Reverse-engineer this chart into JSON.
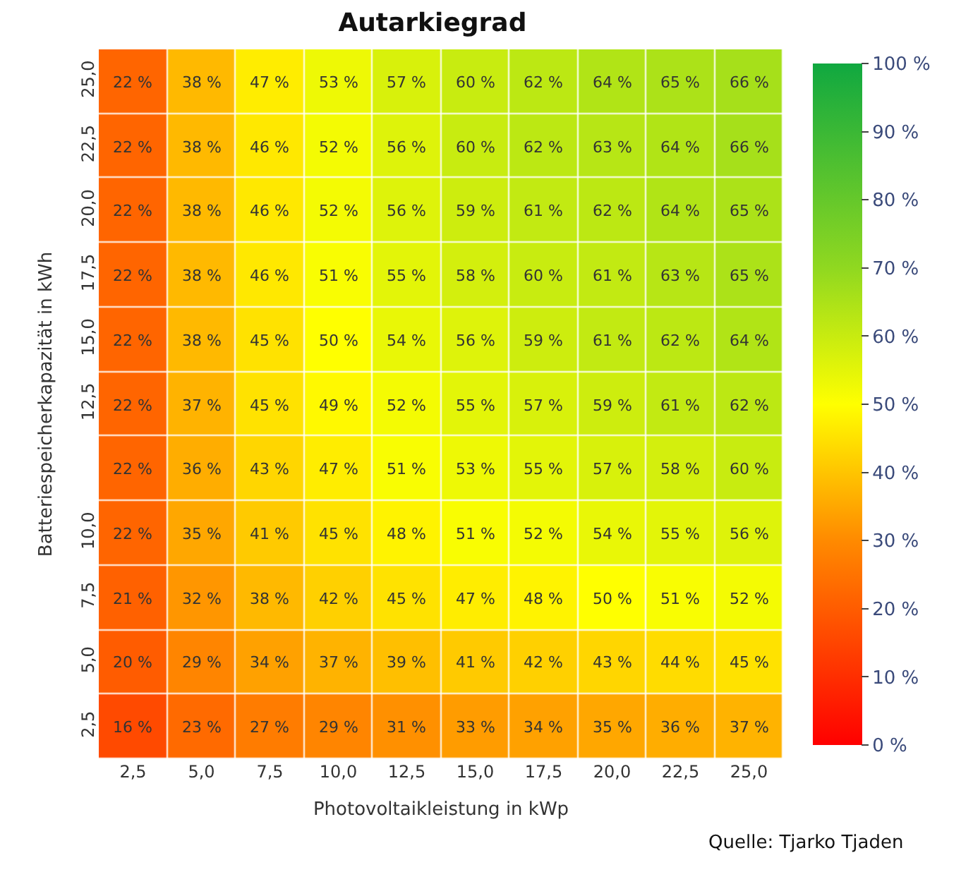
{
  "chart_data": {
    "type": "heatmap",
    "title": "Autarkiegrad",
    "xlabel": "Photovoltaikleistung in kWp",
    "ylabel": "Batteriespeicherkapazität in kWh",
    "x": [
      2.5,
      5.0,
      7.5,
      10.0,
      12.5,
      15.0,
      17.5,
      20.0,
      22.5,
      25.0
    ],
    "y_categories": [
      "25,0",
      "22,5",
      "20,0",
      "17,5",
      "15,0",
      "12,5",
      null,
      "10,0",
      "7,5",
      "5,0",
      "2,5"
    ],
    "xlim": [
      1.25,
      26.25
    ],
    "xticks": [
      {
        "value": 2.5,
        "label": "2,5"
      },
      {
        "value": 5.0,
        "label": "5,0"
      },
      {
        "value": 7.5,
        "label": "7,5"
      },
      {
        "value": 10.0,
        "label": "10,0"
      },
      {
        "value": 12.5,
        "label": "12,5"
      },
      {
        "value": 15.0,
        "label": "15,0"
      },
      {
        "value": 17.5,
        "label": "17,5"
      },
      {
        "value": 20.0,
        "label": "20,0"
      },
      {
        "value": 22.5,
        "label": "22,5"
      },
      {
        "value": 25.0,
        "label": "25,0"
      }
    ],
    "cells": [
      [
        22,
        38,
        47,
        53,
        57,
        60,
        62,
        64,
        65,
        66
      ],
      [
        22,
        38,
        46,
        52,
        56,
        60,
        62,
        63,
        64,
        66
      ],
      [
        22,
        38,
        46,
        52,
        56,
        59,
        61,
        62,
        64,
        65
      ],
      [
        22,
        38,
        46,
        51,
        55,
        58,
        60,
        61,
        63,
        65
      ],
      [
        22,
        38,
        45,
        50,
        54,
        56,
        59,
        61,
        62,
        64
      ],
      [
        22,
        37,
        45,
        49,
        52,
        55,
        57,
        59,
        61,
        62
      ],
      [
        22,
        36,
        43,
        47,
        51,
        53,
        55,
        57,
        58,
        60
      ],
      [
        22,
        35,
        41,
        45,
        48,
        51,
        52,
        54,
        55,
        56
      ],
      [
        21,
        32,
        38,
        42,
        45,
        47,
        48,
        50,
        51,
        52
      ],
      [
        20,
        29,
        34,
        37,
        39,
        41,
        42,
        43,
        44,
        45
      ],
      [
        16,
        23,
        27,
        29,
        31,
        33,
        34,
        35,
        36,
        37
      ]
    ],
    "cell_labels": [
      [
        "22 %",
        "38 %",
        "47 %",
        "53 %",
        "57 %",
        "60 %",
        "62 %",
        "64 %",
        "65 %",
        "66 %"
      ],
      [
        "22 %",
        "38 %",
        "46 %",
        "52 %",
        "56 %",
        "60 %",
        "62 %",
        "63 %",
        "64 %",
        "66 %"
      ],
      [
        "22 %",
        "38 %",
        "46 %",
        "52 %",
        "56 %",
        "59 %",
        "61 %",
        "62 %",
        "64 %",
        "65 %"
      ],
      [
        "22 %",
        "38 %",
        "46 %",
        "51 %",
        "55 %",
        "58 %",
        "60 %",
        "61 %",
        "63 %",
        "65 %"
      ],
      [
        "22 %",
        "38 %",
        "45 %",
        "50 %",
        "54 %",
        "56 %",
        "59 %",
        "61 %",
        "62 %",
        "64 %"
      ],
      [
        "22 %",
        "37 %",
        "45 %",
        "49 %",
        "52 %",
        "55 %",
        "57 %",
        "59 %",
        "61 %",
        "62 %"
      ],
      [
        "22 %",
        "36 %",
        "43 %",
        "47 %",
        "51 %",
        "53 %",
        "55 %",
        "57 %",
        "58 %",
        "60 %"
      ],
      [
        "22 %",
        "35 %",
        "41 %",
        "45 %",
        "48 %",
        "51 %",
        "52 %",
        "54 %",
        "55 %",
        "56 %"
      ],
      [
        "21 %",
        "32 %",
        "38 %",
        "42 %",
        "45 %",
        "47 %",
        "48 %",
        "50 %",
        "51 %",
        "52 %"
      ],
      [
        "20 %",
        "29 %",
        "34 %",
        "37 %",
        "39 %",
        "41 %",
        "42 %",
        "43 %",
        "44 %",
        "45 %"
      ],
      [
        "16 %",
        "23 %",
        "27 %",
        "29 %",
        "31 %",
        "33 %",
        "34 %",
        "35 %",
        "36 %",
        "37 %"
      ]
    ],
    "clim": [
      0,
      100
    ],
    "cticks": [
      {
        "value": 0,
        "label": "0 %"
      },
      {
        "value": 10,
        "label": "10 %"
      },
      {
        "value": 20,
        "label": "20 %"
      },
      {
        "value": 30,
        "label": "30 %"
      },
      {
        "value": 40,
        "label": "40 %"
      },
      {
        "value": 50,
        "label": "50 %"
      },
      {
        "value": 60,
        "label": "60 %"
      },
      {
        "value": 70,
        "label": "70 %"
      },
      {
        "value": 80,
        "label": "80 %"
      },
      {
        "value": 90,
        "label": "90 %"
      },
      {
        "value": 100,
        "label": "100 %"
      }
    ],
    "annotations": [
      "Quelle: Tjarko Tjaden"
    ]
  }
}
